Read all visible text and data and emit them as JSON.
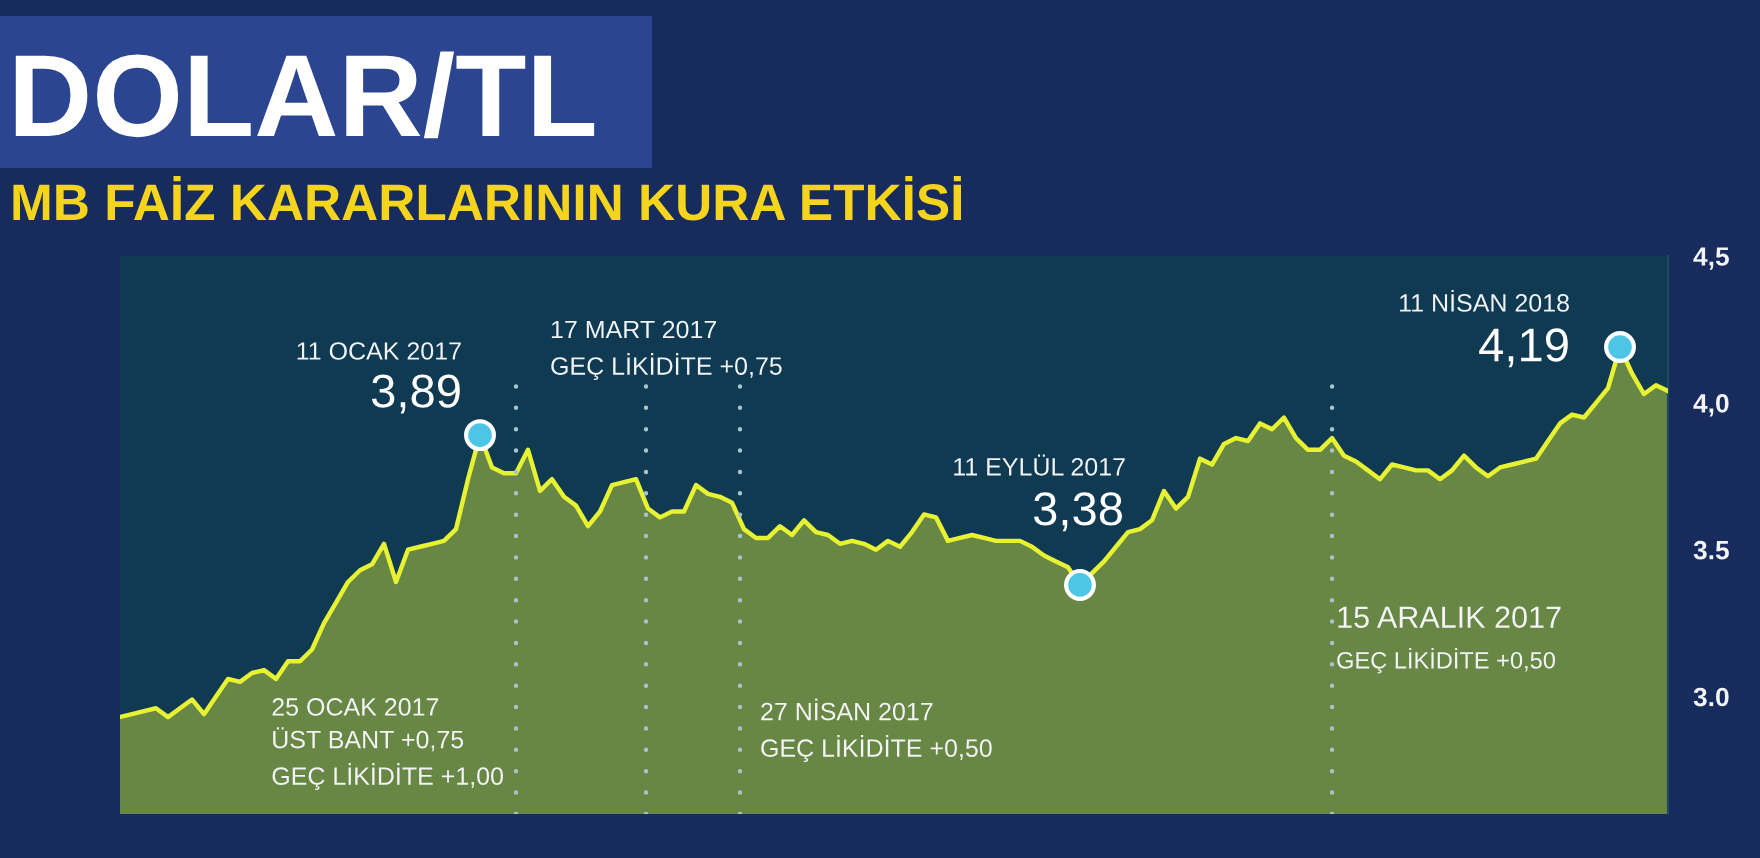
{
  "chart_data": {
    "type": "area",
    "title": "DOLAR/TL",
    "subtitle": "MB FAİZ KARARLARININ KURA ETKİSİ",
    "categories": [
      null,
      null,
      null,
      null,
      null,
      null,
      null,
      null,
      null,
      null,
      null,
      null,
      null,
      null,
      null,
      null,
      null,
      null,
      null,
      null,
      null,
      null,
      null,
      null,
      null,
      null,
      null,
      null,
      null,
      null,
      null,
      null,
      null,
      null,
      null,
      null,
      null,
      null,
      null,
      null,
      null,
      null,
      null,
      null,
      null,
      null,
      null,
      null,
      null,
      null,
      null,
      null,
      null,
      null,
      null,
      null,
      null,
      null,
      null,
      null,
      null,
      null,
      null,
      null,
      null,
      null,
      null,
      null,
      null,
      null,
      null,
      null,
      null,
      null,
      null,
      null,
      null,
      null,
      null,
      null,
      null,
      null,
      null,
      null,
      null,
      null,
      null,
      null,
      null,
      null,
      null,
      null,
      null,
      null,
      null,
      null,
      null,
      null,
      null,
      null,
      null,
      null,
      null,
      null,
      null,
      null,
      null,
      null,
      null,
      null,
      null,
      null,
      null,
      null,
      null,
      null,
      null,
      null,
      null,
      null,
      null,
      null,
      null,
      null,
      null,
      null,
      null,
      null,
      null,
      null
    ],
    "series": [
      {
        "color": "#e6f232",
        "values": [
          2.93,
          2.94,
          2.95,
          2.96,
          2.93,
          2.96,
          2.99,
          2.94,
          3.0,
          3.06,
          3.05,
          3.08,
          3.09,
          3.06,
          3.12,
          3.12,
          3.16,
          3.25,
          3.32,
          3.39,
          3.43,
          3.45,
          3.52,
          3.39,
          3.5,
          3.51,
          3.52,
          3.53,
          3.57,
          3.74,
          3.89,
          3.78,
          3.76,
          3.76,
          3.84,
          3.7,
          3.74,
          3.68,
          3.65,
          3.58,
          3.63,
          3.72,
          3.73,
          3.74,
          3.64,
          3.61,
          3.63,
          3.63,
          3.72,
          3.69,
          3.68,
          3.66,
          3.57,
          3.54,
          3.54,
          3.58,
          3.55,
          3.6,
          3.56,
          3.55,
          3.52,
          3.53,
          3.52,
          3.5,
          3.53,
          3.51,
          3.56,
          3.62,
          3.61,
          3.53,
          3.54,
          3.55,
          3.54,
          3.53,
          3.53,
          3.53,
          3.51,
          3.48,
          3.46,
          3.44,
          3.38,
          3.42,
          3.46,
          3.51,
          3.56,
          3.57,
          3.6,
          3.7,
          3.64,
          3.68,
          3.81,
          3.79,
          3.86,
          3.88,
          3.87,
          3.93,
          3.91,
          3.95,
          3.88,
          3.84,
          3.84,
          3.88,
          3.82,
          3.8,
          3.77,
          3.74,
          3.79,
          3.78,
          3.77,
          3.77,
          3.74,
          3.77,
          3.82,
          3.78,
          3.75,
          3.78,
          3.79,
          3.8,
          3.81,
          3.87,
          3.93,
          3.96,
          3.95,
          4.0,
          4.05,
          4.19,
          4.1,
          4.03,
          4.06,
          4.04
        ]
      },
      {
        "type": "scatter",
        "marker": "circle",
        "color": "#4cc6e4",
        "values": [
          null,
          null,
          null,
          null,
          null,
          null,
          null,
          null,
          null,
          null,
          null,
          null,
          null,
          null,
          null,
          null,
          null,
          null,
          null,
          null,
          null,
          null,
          null,
          null,
          null,
          null,
          null,
          null,
          null,
          null,
          3.89,
          null,
          null,
          null,
          null,
          null,
          null,
          null,
          null,
          null,
          null,
          null,
          null,
          null,
          null,
          null,
          null,
          null,
          null,
          null,
          null,
          null,
          null,
          null,
          null,
          null,
          null,
          null,
          null,
          null,
          null,
          null,
          null,
          null,
          null,
          null,
          null,
          null,
          null,
          null,
          null,
          null,
          null,
          null,
          null,
          null,
          null,
          null,
          null,
          null,
          3.38,
          null,
          null,
          null,
          null,
          null,
          null,
          null,
          null,
          null,
          null,
          null,
          null,
          null,
          null,
          null,
          null,
          null,
          null,
          null,
          null,
          null,
          null,
          null,
          null,
          null,
          null,
          null,
          null,
          null,
          null,
          null,
          null,
          null,
          null,
          null,
          null,
          null,
          null,
          null,
          null,
          null,
          null,
          null,
          null,
          4.19,
          null,
          null,
          null,
          null
        ],
        "value_labels": [
          null,
          null,
          null,
          null,
          null,
          null,
          null,
          null,
          null,
          null,
          null,
          null,
          null,
          null,
          null,
          null,
          null,
          null,
          null,
          null,
          null,
          null,
          null,
          null,
          null,
          null,
          null,
          null,
          null,
          null,
          "3,89",
          null,
          null,
          null,
          null,
          null,
          null,
          null,
          null,
          null,
          null,
          null,
          null,
          null,
          null,
          null,
          null,
          null,
          null,
          null,
          null,
          null,
          null,
          null,
          null,
          null,
          null,
          null,
          null,
          null,
          null,
          null,
          null,
          null,
          null,
          null,
          null,
          null,
          null,
          null,
          null,
          null,
          null,
          null,
          null,
          null,
          null,
          null,
          null,
          null,
          "3,38",
          null,
          null,
          null,
          null,
          null,
          null,
          null,
          null,
          null,
          null,
          null,
          null,
          null,
          null,
          null,
          null,
          null,
          null,
          null,
          null,
          null,
          null,
          null,
          null,
          null,
          null,
          null,
          null,
          null,
          null,
          null,
          null,
          null,
          null,
          null,
          null,
          null,
          null,
          null,
          null,
          null,
          null,
          null,
          null,
          "4,19",
          null,
          null,
          null,
          null
        ]
      }
    ],
    "ylim": [
      2.6,
      4.5
    ],
    "yticks": [
      {
        "value": 4.5,
        "label": "4,5"
      },
      {
        "value": 4.0,
        "label": "4,0"
      },
      {
        "value": 3.5,
        "label": "3.5"
      },
      {
        "value": 3,
        "label": "3.0"
      }
    ],
    "tick_labels": "y",
    "annotations": [
      "11 OCAK 2017",
      "11 EYLÜL 2017",
      "11 NİSAN 2018",
      "25 OCAK 2017\nÜST BANT +0,75\nGEÇ LİKİDİTE +1,00",
      "17 MART 2017\nGEÇ LİKİDİTE +0,75",
      "27 NİSAN 2017\nGEÇ LİKİDİTE +0,50",
      "15 ARALIK 2017\nGEÇ LİKİDİTE +0,50"
    ]
  }
}
